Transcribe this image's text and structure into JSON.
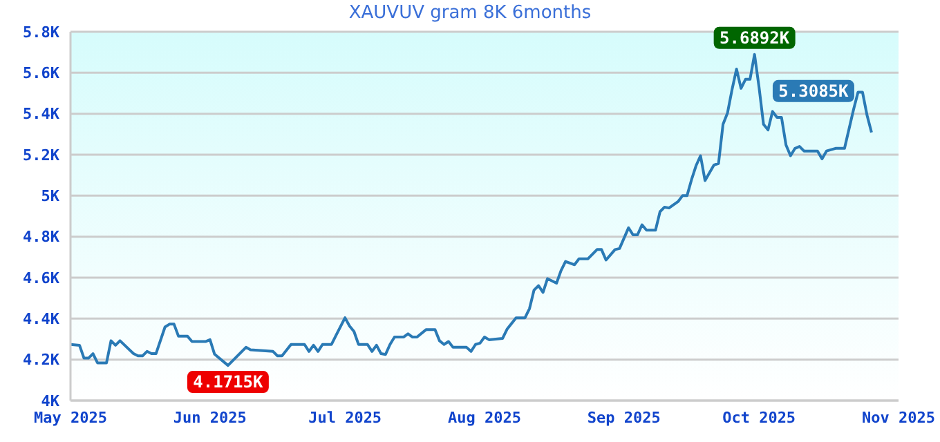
{
  "chart_data": {
    "type": "line",
    "title": "XAUVUV gram 8K 6months",
    "x": [
      "2025-05-01",
      "2025-05-03",
      "2025-05-04",
      "2025-05-05",
      "2025-05-06",
      "2025-05-07",
      "2025-05-09",
      "2025-05-10",
      "2025-05-11",
      "2025-05-12",
      "2025-05-15",
      "2025-05-16",
      "2025-05-17",
      "2025-05-18",
      "2025-05-19",
      "2025-05-20",
      "2025-05-22",
      "2025-05-23",
      "2025-05-24",
      "2025-05-25",
      "2025-05-27",
      "2025-05-28",
      "2025-05-31",
      "2025-06-01",
      "2025-06-02",
      "2025-06-05",
      "2025-06-09",
      "2025-06-10",
      "2025-06-15",
      "2025-06-16",
      "2025-06-17",
      "2025-06-19",
      "2025-06-22",
      "2025-06-23",
      "2025-06-24",
      "2025-06-25",
      "2025-06-26",
      "2025-06-28",
      "2025-06-29",
      "2025-07-01",
      "2025-07-02",
      "2025-07-03",
      "2025-07-04",
      "2025-07-06",
      "2025-07-07",
      "2025-07-08",
      "2025-07-09",
      "2025-07-10",
      "2025-07-11",
      "2025-07-12",
      "2025-07-14",
      "2025-07-15",
      "2025-07-16",
      "2025-07-17",
      "2025-07-19",
      "2025-07-21",
      "2025-07-22",
      "2025-07-23",
      "2025-07-24",
      "2025-07-25",
      "2025-07-28",
      "2025-07-29",
      "2025-07-30",
      "2025-07-31",
      "2025-08-01",
      "2025-08-02",
      "2025-08-05",
      "2025-08-06",
      "2025-08-08",
      "2025-08-10",
      "2025-08-11",
      "2025-08-12",
      "2025-08-13",
      "2025-08-14",
      "2025-08-15",
      "2025-08-17",
      "2025-08-18",
      "2025-08-19",
      "2025-08-21",
      "2025-08-22",
      "2025-08-24",
      "2025-08-26",
      "2025-08-27",
      "2025-08-28",
      "2025-08-30",
      "2025-08-31",
      "2025-09-02",
      "2025-09-03",
      "2025-09-04",
      "2025-09-05",
      "2025-09-06",
      "2025-09-08",
      "2025-09-09",
      "2025-09-10",
      "2025-09-11",
      "2025-09-13",
      "2025-09-14",
      "2025-09-15",
      "2025-09-16",
      "2025-09-17",
      "2025-09-18",
      "2025-09-19",
      "2025-09-21",
      "2025-09-22",
      "2025-09-23",
      "2025-09-24",
      "2025-09-25",
      "2025-09-26",
      "2025-09-27",
      "2025-09-28",
      "2025-09-29",
      "2025-09-30",
      "2025-10-01",
      "2025-10-02",
      "2025-10-03",
      "2025-10-04",
      "2025-10-05",
      "2025-10-06",
      "2025-10-07",
      "2025-10-08",
      "2025-10-09",
      "2025-10-10",
      "2025-10-11",
      "2025-10-14",
      "2025-10-15",
      "2025-10-16",
      "2025-10-18",
      "2025-10-20",
      "2025-10-22",
      "2025-10-23",
      "2025-10-24",
      "2025-10-25",
      "2025-10-26"
    ],
    "series": [
      {
        "color": "#2a7ab5",
        "values": [
          4274,
          4270,
          4207,
          4207,
          4229,
          4184,
          4184,
          4292,
          4270,
          4292,
          4229,
          4218,
          4218,
          4240,
          4229,
          4229,
          4359,
          4373,
          4373,
          4314,
          4314,
          4288,
          4288,
          4297,
          4227,
          4171.5,
          4260,
          4248,
          4240,
          4218,
          4218,
          4274,
          4274,
          4240,
          4270,
          4240,
          4274,
          4274,
          4318,
          4404,
          4364,
          4337,
          4274,
          4274,
          4240,
          4270,
          4229,
          4225,
          4274,
          4310,
          4310,
          4326,
          4310,
          4310,
          4346,
          4346,
          4292,
          4274,
          4288,
          4260,
          4260,
          4240,
          4274,
          4280,
          4310,
          4297,
          4303,
          4348,
          4404,
          4404,
          4449,
          4539,
          4561,
          4528,
          4595,
          4573,
          4634,
          4679,
          4663,
          4692,
          4692,
          4737,
          4737,
          4686,
          4737,
          4742,
          4843,
          4809,
          4809,
          4858,
          4832,
          4832,
          4922,
          4944,
          4940,
          4971,
          5000,
          5000,
          5078,
          5146,
          5195,
          5074,
          5150,
          5157,
          5348,
          5404,
          5517,
          5618,
          5524,
          5568,
          5568,
          5689.2,
          5530,
          5348,
          5321,
          5411,
          5382,
          5382,
          5247,
          5195,
          5231,
          5240,
          5218,
          5218,
          5180,
          5218,
          5231,
          5231,
          5420,
          5505,
          5505,
          5393,
          5308.5
        ]
      }
    ],
    "xlim": [
      "2025-05-01",
      "2025-11-01"
    ],
    "xticks": [
      {
        "value": "2025-05-01",
        "label": "May 2025"
      },
      {
        "value": "2025-06-01",
        "label": "Jun 2025"
      },
      {
        "value": "2025-07-01",
        "label": "Jul 2025"
      },
      {
        "value": "2025-08-01",
        "label": "Aug 2025"
      },
      {
        "value": "2025-09-01",
        "label": "Sep 2025"
      },
      {
        "value": "2025-10-01",
        "label": "Oct 2025"
      },
      {
        "value": "2025-11-01",
        "label": "Nov 2025"
      }
    ],
    "ylim": [
      4000,
      5800
    ],
    "yticks": [
      {
        "value": 4000,
        "label": "4K"
      },
      {
        "value": 4200,
        "label": "4.2K"
      },
      {
        "value": 4400,
        "label": "4.4K"
      },
      {
        "value": 4600,
        "label": "4.6K"
      },
      {
        "value": 4800,
        "label": "4.8K"
      },
      {
        "value": 5000,
        "label": "5K"
      },
      {
        "value": 5200,
        "label": "5.2K"
      },
      {
        "value": 5400,
        "label": "5.4K"
      },
      {
        "value": 5600,
        "label": "5.6K"
      },
      {
        "value": 5800,
        "label": "5.8K"
      }
    ],
    "annotations": [
      {
        "text": "5.6892K",
        "x": "2025-09-30",
        "y": 5689.2
      },
      {
        "text": "4.1715K",
        "x": "2025-06-05",
        "y": 4171.5
      },
      {
        "text": "5.3085K",
        "x": "2025-10-26",
        "y": 5308.5
      }
    ],
    "grid": "y",
    "legend": false,
    "marker": "none",
    "line_style": "solid"
  }
}
